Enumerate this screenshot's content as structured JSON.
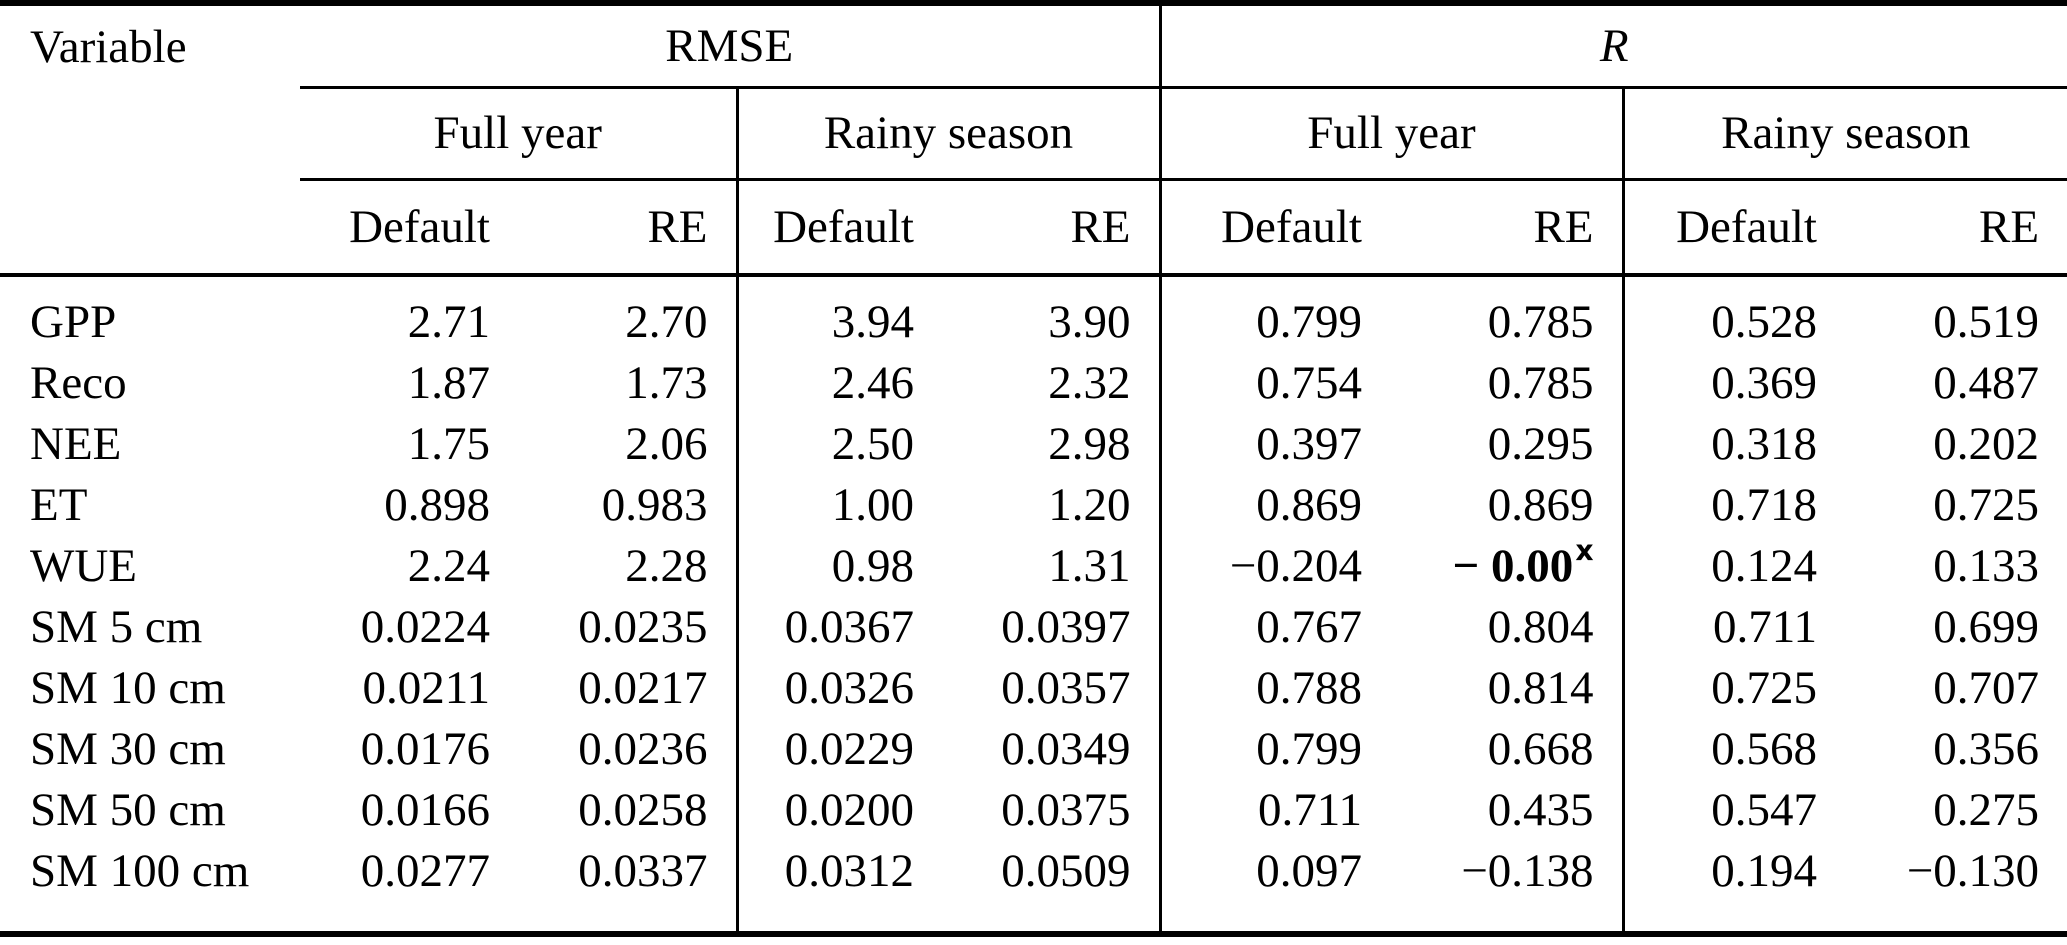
{
  "table": {
    "header": {
      "variable_label": "Variable",
      "groups": [
        {
          "label": "RMSE",
          "italic": false
        },
        {
          "label": "R",
          "italic": true
        }
      ],
      "season_labels": [
        "Full year",
        "Rainy season",
        "Full year",
        "Rainy season"
      ],
      "metric_labels": [
        "Default",
        "RE",
        "Default",
        "RE",
        "Default",
        "RE",
        "Default",
        "RE"
      ]
    },
    "rows": [
      {
        "variable": "GPP",
        "values": [
          "2.71",
          "2.70",
          "3.94",
          "3.90",
          "0.799",
          "0.785",
          "0.528",
          "0.519"
        ]
      },
      {
        "variable": "Reco",
        "values": [
          "1.87",
          "1.73",
          "2.46",
          "2.32",
          "0.754",
          "0.785",
          "0.369",
          "0.487"
        ]
      },
      {
        "variable": "NEE",
        "values": [
          "1.75",
          "2.06",
          "2.50",
          "2.98",
          "0.397",
          "0.295",
          "0.318",
          "0.202"
        ]
      },
      {
        "variable": "ET",
        "values": [
          "0.898",
          "0.983",
          "1.00",
          "1.20",
          "0.869",
          "0.869",
          "0.718",
          "0.725"
        ]
      },
      {
        "variable": "WUE",
        "values": [
          "2.24",
          "2.28",
          "0.98",
          "1.31",
          "−0.204",
          {
            "text": "− 0.00",
            "sup": "x",
            "bold": true
          },
          "0.124",
          "0.133"
        ]
      },
      {
        "variable": "SM 5 cm",
        "values": [
          "0.0224",
          "0.0235",
          "0.0367",
          "0.0397",
          "0.767",
          "0.804",
          "0.711",
          "0.699"
        ]
      },
      {
        "variable": "SM 10 cm",
        "values": [
          "0.0211",
          "0.0217",
          "0.0326",
          "0.0357",
          "0.788",
          "0.814",
          "0.725",
          "0.707"
        ]
      },
      {
        "variable": "SM 30 cm",
        "values": [
          "0.0176",
          "0.0236",
          "0.0229",
          "0.0349",
          "0.799",
          "0.668",
          "0.568",
          "0.356"
        ]
      },
      {
        "variable": "SM 50 cm",
        "values": [
          "0.0166",
          "0.0258",
          "0.0200",
          "0.0375",
          "0.711",
          "0.435",
          "0.547",
          "0.275"
        ]
      },
      {
        "variable": "SM 100 cm",
        "values": [
          "0.0277",
          "0.0337",
          "0.0312",
          "0.0509",
          "0.097",
          "−0.138",
          "0.194",
          "−0.130"
        ]
      }
    ]
  },
  "colors": {
    "text": "#000000",
    "background": "#ffffff",
    "rule": "#000000"
  }
}
